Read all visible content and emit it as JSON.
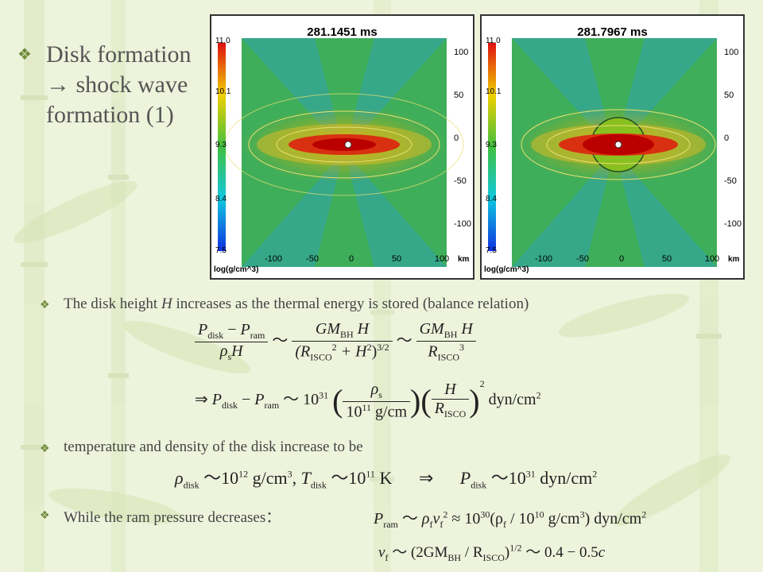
{
  "slide": {
    "title_lines": [
      "Disk formation",
      "→ shock wave",
      "formation (1)"
    ],
    "bullet_glyph": "❖"
  },
  "plots": [
    {
      "time": "281.1451 ms",
      "colorbar_ticks": [
        "11.0",
        "10.1",
        "9.3",
        "8.4",
        "7.5"
      ],
      "colorbar_unit": "log(g/cm^3)",
      "y_ticks": [
        "100",
        "50",
        "0",
        "-50",
        "-100"
      ],
      "x_ticks": [
        "-100",
        "-50",
        "0",
        "50",
        "100"
      ],
      "x_unit": "km"
    },
    {
      "time": "281.7967 ms",
      "colorbar_ticks": [
        "11.0",
        "10.1",
        "9.3",
        "8.4",
        "7.5"
      ],
      "colorbar_unit": "log(g/cm^3)",
      "y_ticks": [
        "100",
        "50",
        "0",
        "-50",
        "-100"
      ],
      "x_ticks": [
        "-100",
        "-50",
        "0",
        "50",
        "100"
      ],
      "x_unit": "km"
    }
  ],
  "bullets": {
    "b1_pre": "The disk height ",
    "b1_var": "H",
    "b1_post": " increases as the thermal energy is stored (balance relation)",
    "b2": "temperature and density of the disk increase to be",
    "b3": "While the ram pressure decreases："
  },
  "equations": {
    "eq1": {
      "num_a": "P",
      "num_a_sub": "disk",
      "minus": " − ",
      "num_b": "P",
      "num_b_sub": "ram",
      "den": "ρ",
      "den_sub": "s",
      "den_var": "H",
      "rel": "〜",
      "mid_num": "GM",
      "mid_num_sub": "BH",
      "mid_num_var": " H",
      "mid_den": "(R",
      "mid_den_sub": "ISCO",
      "mid_den_sup": "2",
      "mid_den_plus": " + H",
      "mid_den_sup2": "2",
      "mid_den_close": ")",
      "mid_den_exp": "3/2",
      "rel2": "〜",
      "right_num": "GM",
      "right_num_sub": "BH",
      "right_num_var": " H",
      "right_den": "R",
      "right_den_sub": "ISCO",
      "right_den_sup": "3"
    },
    "eq2": {
      "arrow": "⇒",
      "lhs": "P",
      "lhs_sub": "disk",
      "minus": " − ",
      "lhs2": "P",
      "lhs2_sub": "ram",
      "rel": "〜",
      "coef": "10",
      "coef_exp": "31",
      "f1_num": "ρ",
      "f1_num_sub": "s",
      "f1_den": "10",
      "f1_den_exp": "11",
      "f1_den_unit": " g/cm",
      "f2_num": "H",
      "f2_den": "R",
      "f2_den_sub": "ISCO",
      "power": "2",
      "unit": "dyn/cm",
      "unit_exp": "2"
    },
    "eq3": {
      "rho": "ρ",
      "rho_sub": "disk",
      "rel": "〜",
      "rho_val": "10",
      "rho_exp": "12",
      "rho_unit": " g/cm",
      "rho_unit_exp": "3",
      "sep": ",  ",
      "t": "T",
      "t_sub": "disk",
      "rel2": "〜",
      "t_val": "10",
      "t_exp": "11",
      "t_unit": " K",
      "arrow": "⇒",
      "p": "P",
      "p_sub": "disk",
      "rel3": "〜",
      "p_val": "10",
      "p_exp": "31",
      "p_unit": " dyn/cm",
      "p_unit_exp": "2"
    },
    "eq4": {
      "p": "P",
      "p_sub": "ram",
      "rel": "〜",
      "rho": "ρ",
      "rho_sub": "f",
      "v": "v",
      "v_sub": "f",
      "v_exp": "2",
      "approx": " ≈ 10",
      "approx_exp": "30",
      "rest": "(ρ",
      "rest_sub": "f",
      "rest2": " / 10",
      "rest2_exp": "10",
      "rest3": " g/cm",
      "rest3_exp": "3",
      "rest4": ") dyn/cm",
      "rest4_exp": "2"
    },
    "eq5": {
      "v": "v",
      "v_sub": "f",
      "rel": "〜",
      "a": "(2GM",
      "a_sub": "BH",
      "b": " / R",
      "b_sub": "ISCO",
      "c": ")",
      "c_exp": "1/2",
      "d": "〜 0.4 − 0.5",
      "e": "c"
    }
  },
  "colors": {
    "bullet": "#6f8a3c",
    "text": "#444444",
    "background": "#eef3dc"
  }
}
